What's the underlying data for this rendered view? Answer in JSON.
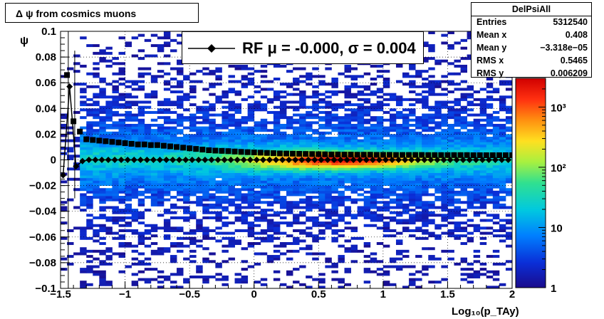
{
  "title": "Δ ψ from cosmics muons",
  "stats_box": {
    "name": "DelPsiAll",
    "rows": [
      {
        "key": "Entries",
        "value": "5312540"
      },
      {
        "key": "Mean x",
        "value": "0.408"
      },
      {
        "key": "Mean y",
        "value": "−3.318e−05"
      },
      {
        "key": "RMS x",
        "value": "0.5465"
      },
      {
        "key": "RMS y",
        "value": "0.006209"
      }
    ]
  },
  "legend": {
    "text": "RF μ = -0.000, σ =   0.004"
  },
  "colors": {
    "profile_marker": "#000000",
    "palette": [
      "#1a0c8c",
      "#0a2fd8",
      "#0080ff",
      "#00c8e0",
      "#30e090",
      "#a8f040",
      "#ffe020",
      "#ff9010",
      "#ff3010",
      "#d00000"
    ]
  },
  "chart_data": {
    "type": "heatmap",
    "title": "Δ ψ from cosmics muons",
    "xlabel": "Log₁₀(p_TAy)",
    "ylabel": "ψ",
    "xlim": [
      -1.5,
      2
    ],
    "ylim": [
      -0.1,
      0.1
    ],
    "grid": true,
    "colorbar": {
      "scale": "log",
      "range": [
        1,
        3000
      ],
      "ticks": [
        {
          "value": 1,
          "label": "1"
        },
        {
          "value": 10,
          "label": "10"
        },
        {
          "value": 100,
          "label": "10²"
        },
        {
          "value": 1000,
          "label": "10³"
        }
      ]
    },
    "x_ticks": [
      {
        "value": -1.5,
        "label": "−1.5"
      },
      {
        "value": -1,
        "label": "−1"
      },
      {
        "value": -0.5,
        "label": "−0.5"
      },
      {
        "value": 0,
        "label": "0"
      },
      {
        "value": 0.5,
        "label": "0.5"
      },
      {
        "value": 1,
        "label": "1"
      },
      {
        "value": 1.5,
        "label": "1.5"
      },
      {
        "value": 2,
        "label": "2"
      }
    ],
    "y_ticks": [
      {
        "value": 0.1,
        "label": "0.1"
      },
      {
        "value": 0.08,
        "label": "0.08"
      },
      {
        "value": 0.06,
        "label": "0.06"
      },
      {
        "value": 0.04,
        "label": "0.04"
      },
      {
        "value": 0.02,
        "label": "0.02"
      },
      {
        "value": 0,
        "label": "0"
      },
      {
        "value": -0.02,
        "label": "−0.02"
      },
      {
        "value": -0.04,
        "label": "−0.04"
      },
      {
        "value": -0.06,
        "label": "−0.06"
      },
      {
        "value": -0.08,
        "label": "−0.08"
      },
      {
        "value": -0.1,
        "label": "−0.1"
      }
    ],
    "series": [
      {
        "marker": "square",
        "x": [
          -1.45,
          -1.4,
          -1.35,
          -1.3,
          -1.25,
          -1.2,
          -1.15,
          -1.1,
          -1.05,
          -1.0,
          -0.95,
          -0.9,
          -0.85,
          -0.8,
          -0.75,
          -0.7,
          -0.65,
          -0.6,
          -0.55,
          -0.5,
          -0.45,
          -0.4,
          -0.35,
          -0.3,
          -0.25,
          -0.2,
          -0.15,
          -0.1,
          -0.05,
          0.0,
          0.05,
          0.1,
          0.15,
          0.2,
          0.25,
          0.3,
          0.35,
          0.4,
          0.45,
          0.5,
          0.55,
          0.6,
          0.65,
          0.7,
          0.75,
          0.8,
          0.85,
          0.9,
          0.95,
          1.0,
          1.05,
          1.1,
          1.15,
          1.2,
          1.25,
          1.3,
          1.35,
          1.4,
          1.45,
          1.5,
          1.55,
          1.6,
          1.65,
          1.7,
          1.75,
          1.8,
          1.85,
          1.9,
          1.95,
          2.0
        ],
        "y": [
          0.066,
          0.03,
          0.022,
          0.016,
          0.0155,
          0.015,
          0.0145,
          0.014,
          0.0135,
          0.013,
          0.0125,
          0.012,
          0.012,
          0.0115,
          0.0115,
          0.011,
          0.0105,
          0.01,
          0.0095,
          0.009,
          0.0085,
          0.008,
          0.0075,
          0.0072,
          0.007,
          0.0068,
          0.0065,
          0.0062,
          0.006,
          0.0058,
          0.0056,
          0.0054,
          0.0052,
          0.005,
          0.0049,
          0.0048,
          0.0047,
          0.0046,
          0.0045,
          0.0044,
          0.0043,
          0.0042,
          0.0042,
          0.0041,
          0.0041,
          0.004,
          0.004,
          0.004,
          0.0039,
          0.0039,
          0.0039,
          0.0038,
          0.0038,
          0.0038,
          0.0038,
          0.0038,
          0.0037,
          0.0037,
          0.0037,
          0.0037,
          0.0037,
          0.0037,
          0.0037,
          0.0036,
          0.0036,
          0.0036,
          0.0036,
          0.0036,
          0.0036,
          0.0036
        ]
      },
      {
        "marker": "diamond",
        "x": [
          -1.48,
          -1.43,
          -1.38,
          -1.33,
          -1.28,
          -1.23,
          -1.18,
          -1.13,
          -1.08,
          -1.03,
          -0.98,
          -0.93,
          -0.88,
          -0.83,
          -0.78,
          -0.73,
          -0.68,
          -0.63,
          -0.58,
          -0.53,
          -0.48,
          -0.43,
          -0.38,
          -0.33,
          -0.28,
          -0.23,
          -0.18,
          -0.13,
          -0.08,
          -0.03,
          0.02,
          0.07,
          0.12,
          0.17,
          0.22,
          0.27,
          0.32,
          0.37,
          0.42,
          0.47,
          0.52,
          0.57,
          0.62,
          0.67,
          0.72,
          0.77,
          0.82,
          0.87,
          0.92,
          0.97,
          1.02,
          1.07,
          1.12,
          1.17,
          1.22,
          1.27,
          1.32,
          1.37,
          1.42,
          1.47,
          1.52,
          1.57,
          1.62,
          1.67,
          1.72,
          1.77,
          1.82,
          1.87,
          1.92,
          1.97
        ],
        "y": [
          -0.012,
          0.057,
          -0.005,
          -0.001,
          0.0,
          0.0,
          0.0,
          0.0,
          0.0,
          0.0,
          0.0,
          0.0,
          0.0,
          0.0,
          0.0,
          0.0,
          0.0,
          0.0,
          0.0,
          0.0,
          0.0,
          0.0,
          0.0,
          0.0,
          0.0,
          0.0,
          0.0,
          0.0,
          0.0,
          0.0,
          0.0,
          0.0,
          0.0,
          0.0,
          0.0,
          0.0,
          0.0,
          0.0,
          0.0,
          0.0,
          0.0,
          0.0,
          0.0,
          0.0,
          0.0,
          0.0,
          0.0,
          0.0,
          0.0,
          0.0,
          0.0,
          0.0,
          0.0,
          0.0,
          0.0,
          0.0,
          0.0,
          0.0,
          0.0,
          0.0,
          0.0,
          0.0,
          0.0,
          0.0,
          0.0,
          0.0,
          0.0,
          0.0,
          0.0,
          0.0
        ]
      }
    ]
  }
}
